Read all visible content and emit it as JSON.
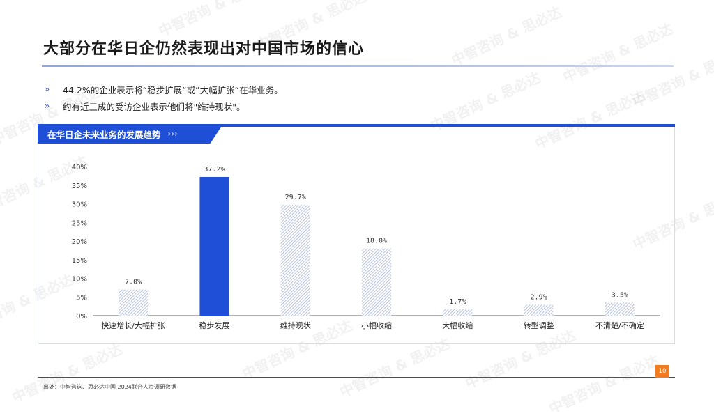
{
  "title": "大部分在华日企仍然表现出对中国市场的信心",
  "bullets": [
    {
      "marker": "»",
      "text": "44.2%的企业表示将“稳步扩展“或”大幅扩张“在华业务。"
    },
    {
      "marker": "»",
      "text": "约有近三成的受访企业表示他们将\"维持现状\"。"
    }
  ],
  "chart_tab": {
    "label": "在华日企未来业务的发展趋势",
    "arrows": "›››"
  },
  "watermark": "中智咨询 & 思必达",
  "source": "出处：中智咨询、思必达中国 2024联合人资调研数据",
  "page_number": "10",
  "colors": {
    "accent": "#1f4fd6",
    "hatch": "#9aa9cf",
    "page_badge": "#f07c1f"
  },
  "chart_data": {
    "type": "bar",
    "categories": [
      "快速增长/大幅扩张",
      "稳步发展",
      "维持现状",
      "小幅收缩",
      "大幅收缩",
      "转型调整",
      "不清楚/不确定"
    ],
    "values": [
      7.0,
      37.2,
      29.7,
      18.0,
      1.7,
      2.9,
      3.5
    ],
    "value_labels": [
      "7.0%",
      "37.2%",
      "29.7%",
      "18.0%",
      "1.7%",
      "2.9%",
      "3.5%"
    ],
    "highlight_index": 1,
    "yticks": [
      "0%",
      "5%",
      "10%",
      "15%",
      "20%",
      "25%",
      "30%",
      "35%",
      "40%"
    ],
    "ylim": [
      0,
      40
    ],
    "grid": false
  }
}
